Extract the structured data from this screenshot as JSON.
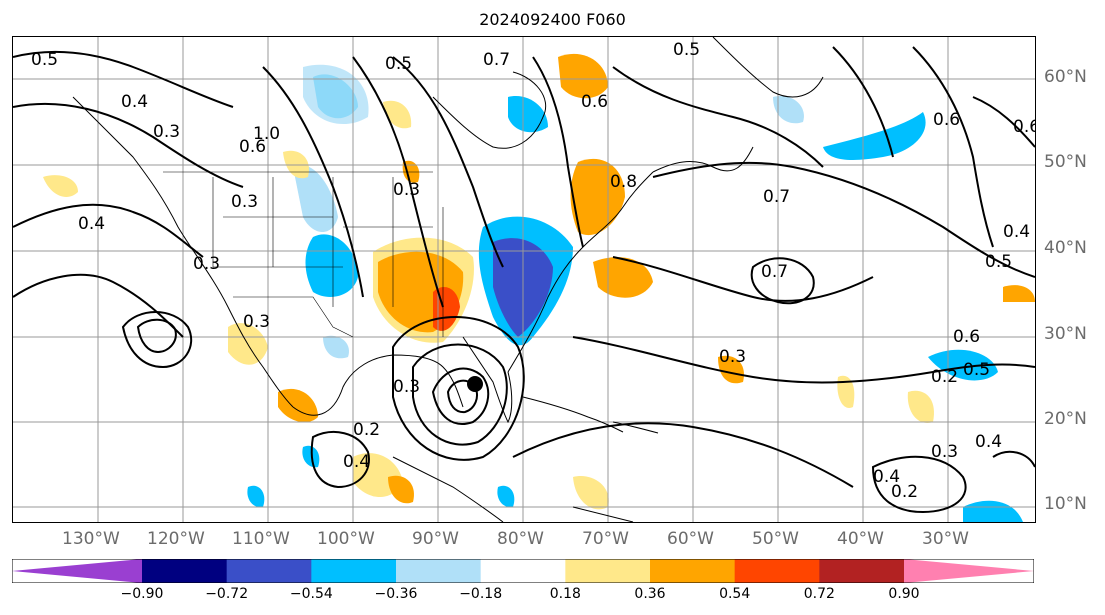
{
  "title": "2024092400 F060",
  "lon_labels": [
    "130°W",
    "120°W",
    "110°W",
    "100°W",
    "90°W",
    "80°W",
    "70°W",
    "60°W",
    "50°W",
    "40°W",
    "30°W"
  ],
  "lat_labels": [
    "60°N",
    "50°N",
    "40°N",
    "30°N",
    "20°N",
    "10°N"
  ],
  "colorbar": {
    "ticks": [
      "−0.90",
      "−0.72",
      "−0.54",
      "−0.36",
      "−0.18",
      "0.18",
      "0.36",
      "0.54",
      "0.72",
      "0.90"
    ],
    "colors": [
      "#9a3fd1",
      "#000080",
      "#3a4fc8",
      "#00bfff",
      "#b0e0f8",
      "#ffffff",
      "#ffe88a",
      "#ffa500",
      "#ff4500",
      "#b22222",
      "#ff80b0"
    ]
  },
  "contour_labels": [
    "0.5",
    "0.4",
    "0.3",
    "1.0",
    "0.6",
    "0.3",
    "0.4",
    "0.3",
    "0.3",
    "0.3",
    "0.2",
    "0.4",
    "0.5",
    "0.7",
    "0.6",
    "0.5",
    "0.6",
    "0.8",
    "0.7",
    "0.4",
    "0.5",
    "0.7",
    "0.6",
    "0.3",
    "0.2",
    "0.5",
    "0.6",
    "0.3",
    "0.4",
    "0.2",
    "0.3",
    "0.4"
  ],
  "marker": {
    "label": "storm center"
  }
}
